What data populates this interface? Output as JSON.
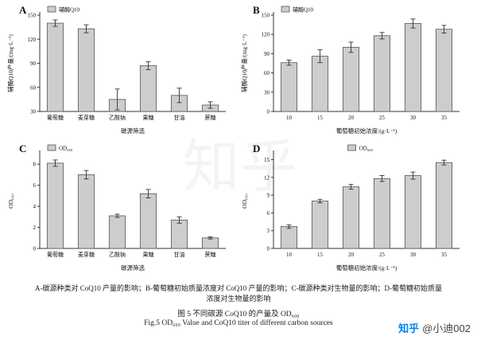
{
  "captions": {
    "line1": "A-碳源种类对 CoQ10 产量的影响；B-葡萄糖初始质量浓度对 CoQ10 产量的影响；C-碳源种类对生物量的影响；D-葡萄糖初始质量",
    "line2": "浓度对生物量的影响",
    "title_cn": "图 5 不同碳源 CoQ10 的产量及 OD₆₀₀",
    "title_en": "Fig.5 OD₆₀₀ Value and CoQ10 titer of different carbon sources"
  },
  "watermark": {
    "center_text": "知乎",
    "brand": "知乎",
    "author": "@小迪002"
  },
  "colors": {
    "bar_fill": "#cdcdcd",
    "bar_edge": "#555555",
    "zhihu_blue": "#0084ff"
  },
  "chart_data": [
    {
      "type": "bar",
      "panel_label": "A",
      "legend": "辅酶Q10",
      "legend_pos": "left",
      "categories": [
        "葡萄糖",
        "麦芽糖",
        "乙酸钠",
        "果糖",
        "甘油",
        "蔗糖"
      ],
      "values": [
        140,
        133,
        45,
        87,
        50,
        38
      ],
      "errors": [
        4,
        5,
        13,
        5,
        9,
        4
      ],
      "title": "",
      "xlabel": "碳源筛选",
      "ylabel": "辅酶Q10产量/(mg·L⁻¹)",
      "ylim": [
        30,
        150
      ],
      "yticks": [
        30,
        60,
        90,
        120,
        150
      ]
    },
    {
      "type": "bar",
      "panel_label": "B",
      "legend": "辅酶Q10",
      "legend_pos": "left",
      "categories": [
        "10",
        "15",
        "20",
        "25",
        "30",
        "35"
      ],
      "values": [
        76,
        86,
        100,
        118,
        137,
        128
      ],
      "errors": [
        4,
        10,
        8,
        5,
        7,
        6
      ],
      "title": "",
      "xlabel": "葡萄糖初始浓度/(g·L⁻¹)",
      "ylabel": "辅酶Q10产量/(mg·L⁻¹)",
      "ylim": [
        0,
        150
      ],
      "yticks": [
        0,
        30,
        60,
        90,
        120,
        150
      ]
    },
    {
      "type": "bar",
      "panel_label": "C",
      "legend": "OD₆₀₀",
      "legend_pos": "left",
      "categories": [
        "葡萄糖",
        "麦芽糖",
        "乙酸钠",
        "果糖",
        "甘油",
        "蔗糖"
      ],
      "values": [
        8.1,
        7.0,
        3.1,
        5.2,
        2.7,
        1.0
      ],
      "errors": [
        0.3,
        0.4,
        0.15,
        0.4,
        0.3,
        0.1
      ],
      "title": "",
      "xlabel": "碳源筛选",
      "ylabel": "OD₆₀₀",
      "ylim": [
        0,
        9
      ],
      "yticks": [
        0,
        2,
        4,
        6,
        8
      ]
    },
    {
      "type": "bar",
      "panel_label": "D",
      "legend": "OD₆₀₀",
      "legend_pos": "center",
      "categories": [
        "10",
        "15",
        "20",
        "25",
        "30",
        "35"
      ],
      "values": [
        3.7,
        8.0,
        10.4,
        11.8,
        12.3,
        14.5
      ],
      "errors": [
        0.3,
        0.3,
        0.4,
        0.5,
        0.6,
        0.4
      ],
      "title": "",
      "xlabel": "葡萄糖初始浓度/(g·L⁻¹)",
      "ylabel": "OD₆₀₀",
      "ylim": [
        0,
        16
      ],
      "yticks": [
        0,
        3,
        6,
        9,
        12,
        15
      ]
    }
  ]
}
